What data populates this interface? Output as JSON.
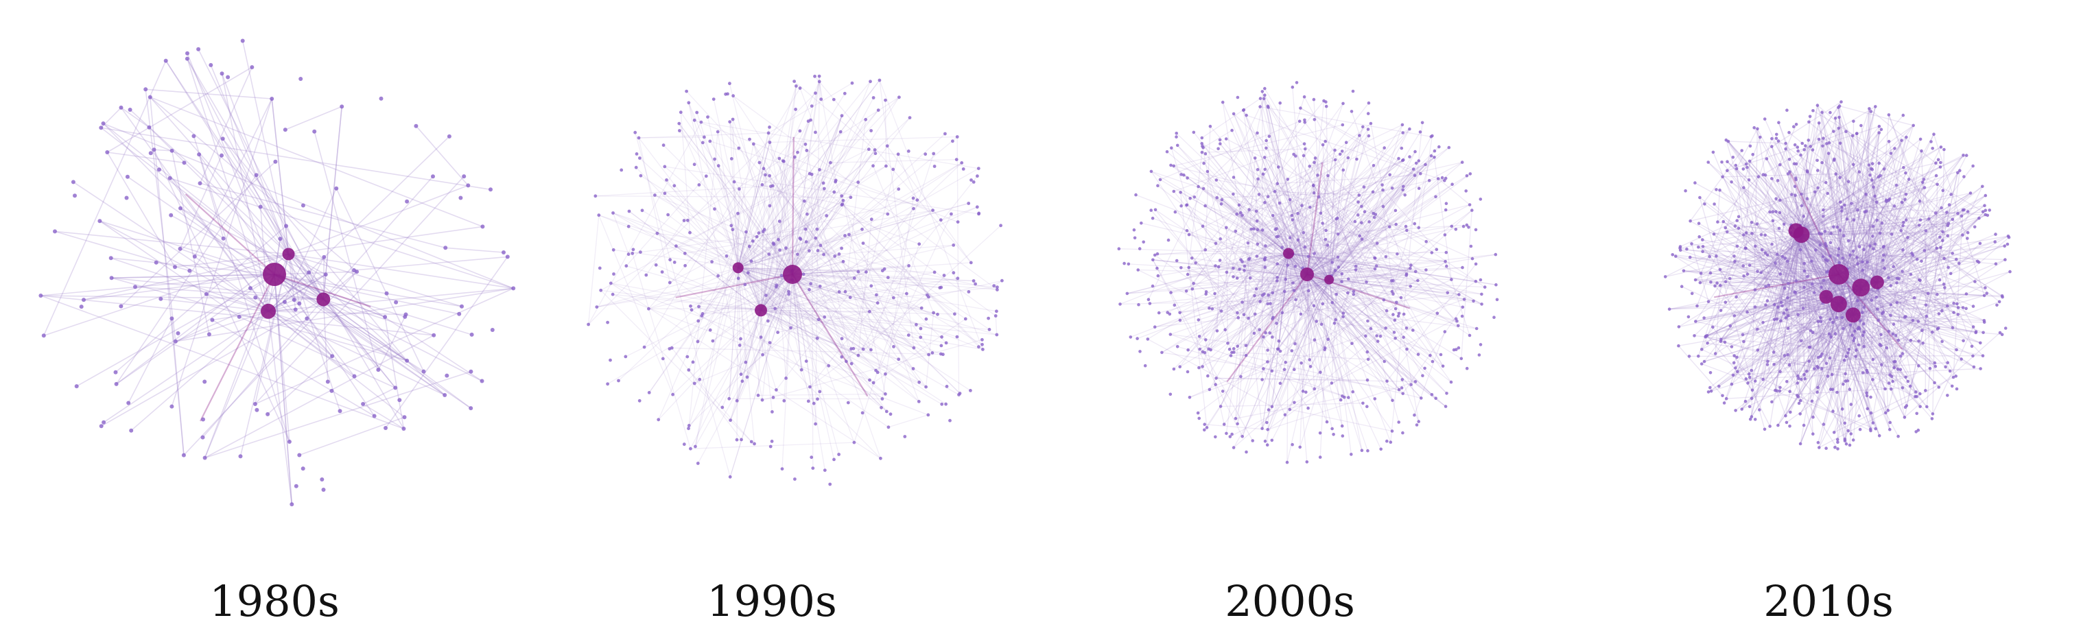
{
  "colors": {
    "edge": "#9b7fc8",
    "node": "#8a63c9",
    "hub": "#8c1a86",
    "label": "#111111"
  },
  "panels": [
    {
      "label": "1980s",
      "density": "sparse",
      "hubs": 4
    },
    {
      "label": "1990s",
      "density": "moderate",
      "hubs": 3
    },
    {
      "label": "2000s",
      "density": "dense",
      "hubs": 3
    },
    {
      "label": "2010s",
      "density": "very-dense",
      "hubs": 8
    }
  ]
}
